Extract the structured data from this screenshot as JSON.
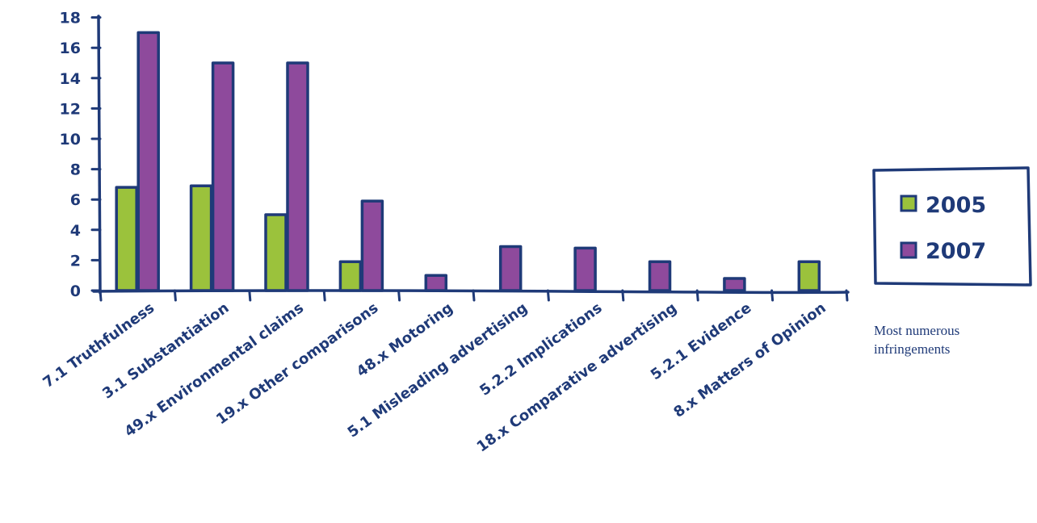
{
  "chart_data": {
    "type": "bar",
    "categories": [
      "7.1 Truthfulness",
      "3.1 Substantiation",
      "49.x Environmental claims",
      "19.x Other comparisons",
      "48.x Motoring",
      "5.1 Misleading advertising",
      "5.2.2 Implications",
      "18.x Comparative advertising",
      "5.2.1 Evidence",
      "8.x Matters of Opinion"
    ],
    "series": [
      {
        "name": "2005",
        "values": [
          6.8,
          6.9,
          5.0,
          1.9,
          0,
          0,
          0,
          0,
          0,
          1.9
        ]
      },
      {
        "name": "2007",
        "values": [
          17,
          15,
          15,
          5.9,
          1.0,
          2.9,
          2.8,
          1.9,
          0.8,
          0
        ]
      }
    ],
    "yticks": [
      "0",
      "2",
      "4",
      "6",
      "8",
      "10",
      "12",
      "14",
      "16",
      "18"
    ],
    "ylim": [
      0,
      18
    ],
    "xlabel": "",
    "ylabel": "",
    "grid": false,
    "legend_position": "right",
    "colors": {
      "2005": "#9bc23c",
      "2007": "#8e4a9c",
      "outline": "#1f3a78"
    }
  },
  "caption": {
    "line1": "Most numerous",
    "line2": "infringements"
  }
}
